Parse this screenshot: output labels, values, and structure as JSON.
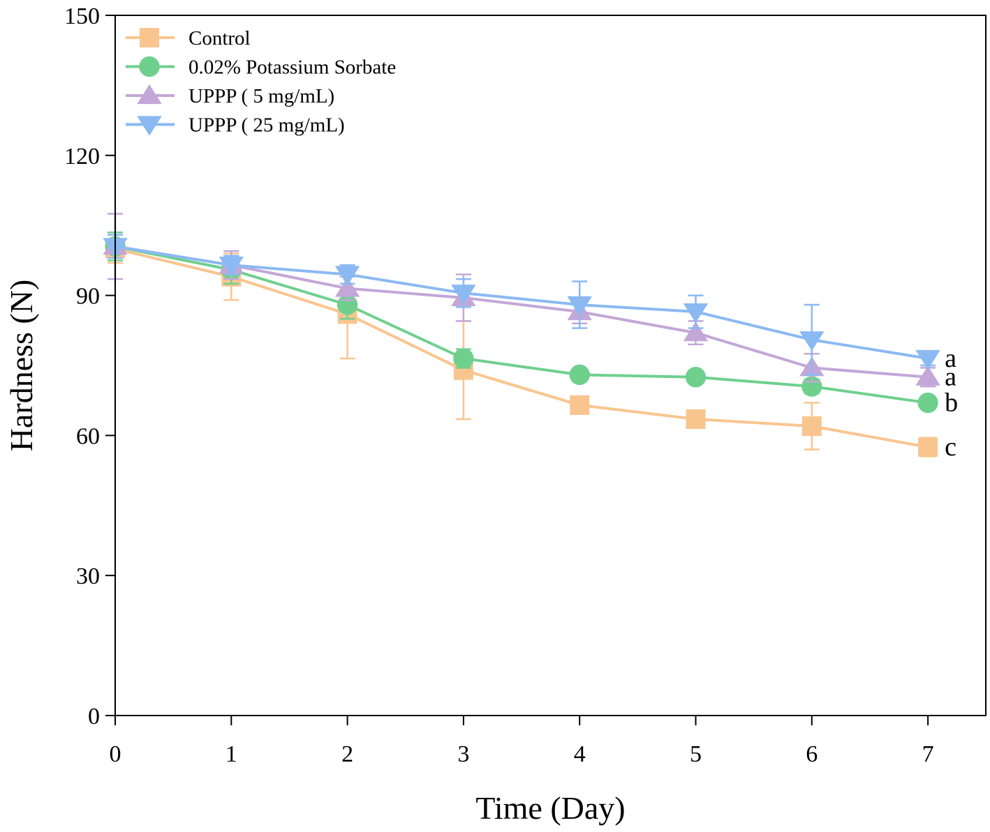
{
  "chart_data": {
    "type": "line",
    "title": "",
    "xlabel": "Time (Day)",
    "ylabel": "Hardness (N)",
    "x": [
      0,
      1,
      2,
      3,
      4,
      5,
      6,
      7
    ],
    "xlim": [
      0,
      7.45
    ],
    "ylim": [
      0,
      150
    ],
    "xticks": [
      "0",
      "1",
      "2",
      "3",
      "4",
      "5",
      "6",
      "7"
    ],
    "yticks": [
      "0",
      "30",
      "60",
      "90",
      "120",
      "150"
    ],
    "grid": false,
    "legend_position": "top-left",
    "series": [
      {
        "name": "Control",
        "color": "#F9C58F",
        "marker": "square",
        "values": [
          100,
          94,
          86,
          74,
          66.5,
          63.5,
          62,
          57.5
        ],
        "errors": [
          3,
          5,
          9.5,
          10.5,
          1.5,
          1.5,
          5,
          2
        ],
        "sig_label": "c"
      },
      {
        "name": "0.02% Potassium Sorbate",
        "color": "#6FD08E",
        "marker": "circle",
        "values": [
          100.5,
          95.5,
          88,
          76.5,
          73,
          72.5,
          70.5,
          67
        ],
        "errors": [
          3,
          3,
          3,
          2,
          1,
          1,
          1.5,
          1
        ],
        "sig_label": "b"
      },
      {
        "name": "UPPP ( 5 mg/mL)",
        "color": "#C3A7D8",
        "marker": "triangle-up",
        "values": [
          100.5,
          96.5,
          91.5,
          89.5,
          86.5,
          82,
          74.5,
          72.5
        ],
        "errors": [
          7,
          3,
          2.5,
          5,
          2.5,
          2.5,
          3,
          2
        ],
        "sig_label": "a"
      },
      {
        "name": "UPPP ( 25 mg/mL)",
        "color": "#8BB9F2",
        "marker": "triangle-down",
        "values": [
          100.5,
          96.5,
          94.5,
          90.5,
          88,
          86.5,
          80.5,
          76.5
        ],
        "errors": [
          2.5,
          2,
          2,
          3,
          5,
          3.5,
          7.5,
          1.5
        ],
        "sig_label": "a"
      }
    ]
  }
}
